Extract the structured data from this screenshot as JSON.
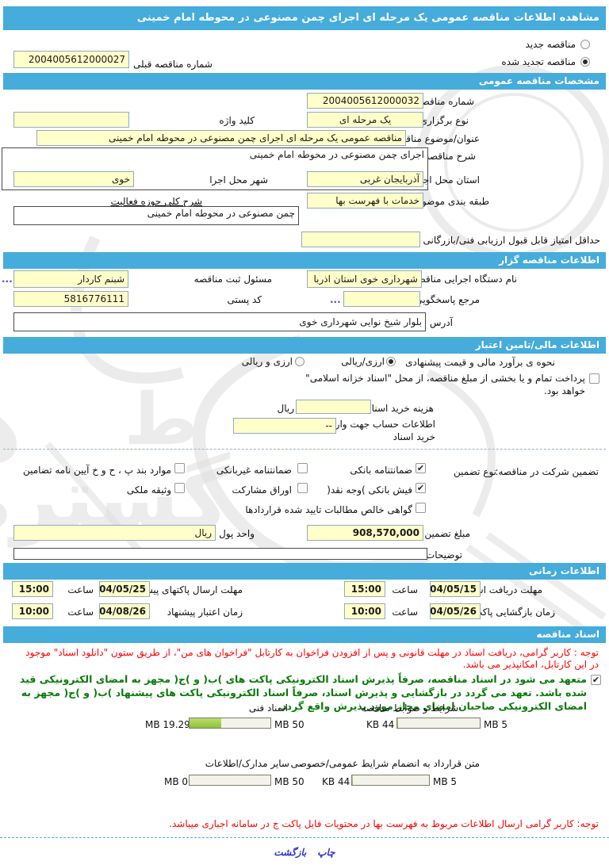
{
  "colors": {
    "accent_blue": "#45acdc",
    "input_yellow": "#ffffc9",
    "notice_red": "#ff0000",
    "commit_green": "#0a7a0a",
    "progress_green": "#8cc335"
  },
  "header": {
    "title": "مشاهده اطلاعات مناقصه عمومی یک مرحله ای اجرای چمن مصنوعی در محوطه امام خمینی"
  },
  "renew": {
    "new_label": "مناقصه جدید",
    "new_selected": false,
    "renewed_label": "مناقصه تجدید شده",
    "renewed_selected": true,
    "prev_number_label": "شماره مناقصه قبلی",
    "prev_number_value": "2004005612000027"
  },
  "general": {
    "section_title": "مشخصات مناقصه عمومی",
    "number_label": "شماره مناقصه",
    "number_value": "2004005612000032",
    "type_label": "نوع برگزاری",
    "type_value": "یک مرحله ای",
    "keyword_label": "کلید واژه",
    "keyword_value": "",
    "subject_label": "عنوان/موضوع مناقصه",
    "subject_value": "مناقصه عمومی یک مرحله ای اجرای چمن مصنوعی در محوطه امام خمینی",
    "desc_label": "شرح مناقصه",
    "desc_value": "اجرای چمن مصنوعی در محوطه امام خمینی",
    "province_label": "استان محل اجرا",
    "province_value": "آذربایجان غربی",
    "city_label": "شهر محل اجرا",
    "city_value": "خوی",
    "category_label": "طبقه بندی موضوعی",
    "category_value": "خدمات با فهرست بها",
    "scope_label": "شرح کلی حوزه فعالیت",
    "scope_value": "چمن مصنوعی در محوطه امام خمینی",
    "min_score_label": "حداقل امتیاز قابل قبول ارزیابی فنی/بازرگانی",
    "min_score_value": ""
  },
  "agency": {
    "section_title": "اطلاعات مناقصه گزار",
    "org_label": "نام دستگاه اجرایی مناقصه گزار",
    "org_value": "شهرداری خوی استان اذربا",
    "registrar_label": "مسئول ثبت مناقصه",
    "registrar_value": "شبنم کاردار",
    "more": "...",
    "contact_label": "مرجع پاسخگویی",
    "contact_value": "",
    "postal_label": "کد پستی",
    "postal_value": "5816776111",
    "address_label": "آدرس",
    "address_value": "بلوار شیخ نوایی شهرداری خوی"
  },
  "financial": {
    "section_title": "اطلاعات مالی/تامین اعتبار",
    "estimate_label": "نحوه ی برآورد مالی و قیمت پیشنهادی",
    "option_rial": "ارزی/ریالی",
    "option_rial_selected": true,
    "option_both": "ارزی و ریالی",
    "option_both_selected": false,
    "treasury_checked": false,
    "treasury_line1": "پرداخت تمام و یا بخشی از مبلغ مناقصه، از محل \"اسناد خزانه اسلامی\"",
    "treasury_line2": "خواهد بود.",
    "doc_fee_label": "هزینه خرید اسناد",
    "doc_fee_value": "",
    "doc_fee_currency": "ریال",
    "account_label_line1": "اطلاعات حساب جهت واریز هزینه",
    "account_label_line2": "خرید اسناد",
    "account_value": "--",
    "guarantee_label": "تضمین شرکت در مناقصه:",
    "guarantee_type_label": "نوع تضمین",
    "guarantee_items": [
      {
        "label": "ضمانتنامه بانکی",
        "checked": true
      },
      {
        "label": "ضمانتنامه غیربانکی",
        "checked": false
      },
      {
        "label": "موارد بند پ ، ح و خ آیین نامه تضامین",
        "checked": false
      },
      {
        "label": "فیش بانکی )وجه نقد(",
        "checked": true
      },
      {
        "label": "اوراق مشارکت",
        "checked": false
      },
      {
        "label": "وثیقه ملکی",
        "checked": false
      },
      {
        "label": "گواهی خالص مطالبات تایید شده قراردادها",
        "checked": false
      }
    ],
    "amount_label": "مبلغ تضمین",
    "amount_value": "908,570,000",
    "currency_label": "واحد پول",
    "currency_value": "ریال",
    "notes_label": "توضیحات",
    "notes_value": ""
  },
  "schedule": {
    "section_title": "اطلاعات زمانی",
    "hour_label": "ساعت",
    "receive_label": "مهلت دریافت اسناد",
    "receive_date": "1404/05/15",
    "receive_time": "15:00",
    "submit_label": "مهلت ارسال پاکتهای پیشنهاد",
    "submit_date": "1404/05/25",
    "submit_time": "15:00",
    "opening_label": "زمان بازگشایی پاکت ها",
    "opening_date": "1404/05/26",
    "opening_time": "10:00",
    "validity_label": "زمان اعتبار پیشنهاد",
    "validity_date": "1404/08/26",
    "validity_time": "10:00"
  },
  "documents": {
    "section_title": "اسناد مناقصه",
    "notice_red": "توجه : کاربر گرامی، دریافت اسناد در مهلت قانونی و پس از افزودن فراخوان به کارتابل \"فراخوان های من\"، از طریق ستون \"دانلود اسناد\" موجود در این کارتابل، امکانپذیر می باشد.",
    "commitment_checked": true,
    "commitment_green": "متعهد می شود در اسناد مناقصه، صرفاً پذیرش اسناد الکترونیکی پاکت های )ب( و )ج( مجهز به امضای الکترونیکی قید شده باشد. تعهد می گردد در بازگشایی و پذیرش اسناد، صرفاً اسناد الکترونیکی پاکت های پیشنهاد )ب( و )ج( مجهز به امضای الکترونیکی صاحبان امضای مجاز مورد پذیرش واقع گردد.",
    "uploads": [
      {
        "label": "شرایط و ضوابط مناقصه",
        "used": "44 KB",
        "max": "5 MB",
        "pct": 1
      },
      {
        "label": "اسناد فنی",
        "used": "19.29 MB",
        "max": "50 MB",
        "pct": 39
      },
      {
        "label": "متن قرارداد به انضمام شرایط عمومی/خصوصی",
        "used": "44 KB",
        "max": "5 MB",
        "pct": 1
      },
      {
        "label": "سایر مدارک/اطلاعات",
        "used": "0 MB",
        "max": "50 MB",
        "pct": 0
      }
    ],
    "footer_red": "توجه: کاربر گرامی ارسال اطلاعات مربوط به فهرست بها در محتویات فایل پاکت ج در سامانه اجباری میباشد."
  },
  "footer": {
    "print": "چاپ",
    "back": "بازگشت"
  }
}
